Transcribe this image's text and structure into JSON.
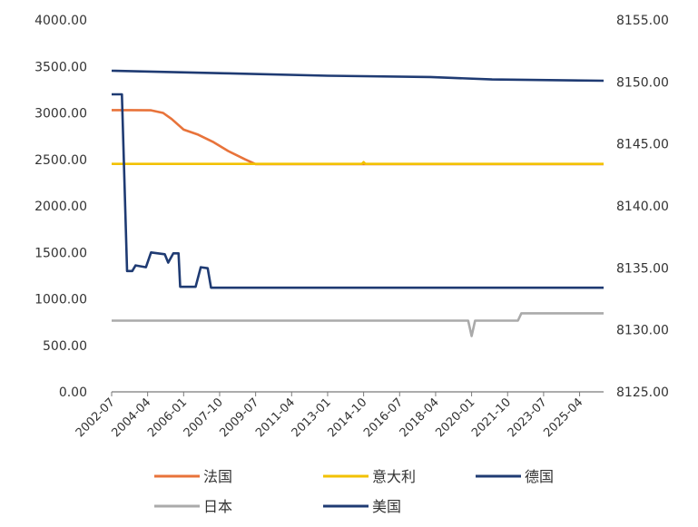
{
  "chart_data": {
    "type": "line",
    "title": "",
    "xlabel": "",
    "ylabel": "",
    "x_ticks": [
      "2002-07",
      "2004-04",
      "2006-01",
      "2007-10",
      "2009-07",
      "2011-04",
      "2013-01",
      "2014-10",
      "2016-07",
      "2018-04",
      "2020-01",
      "2021-10",
      "2023-07",
      "2025-04"
    ],
    "x_range": [
      "2002-07",
      "2026-06"
    ],
    "y_left": {
      "ticks": [
        "0.00",
        "500.00",
        "1000.00",
        "1500.00",
        "2000.00",
        "2500.00",
        "3000.00",
        "3500.00",
        "4000.00"
      ],
      "range": [
        0,
        4000
      ]
    },
    "y_right": {
      "ticks": [
        "8125.00",
        "8130.00",
        "8135.00",
        "8140.00",
        "8145.00",
        "8150.00",
        "8155.00"
      ],
      "range": [
        8125,
        8155
      ]
    },
    "grid": false,
    "legend_position": "bottom",
    "series": [
      {
        "name": "法国",
        "axis": "left",
        "color": "#E8733A",
        "points": [
          [
            "2002-07",
            3030
          ],
          [
            "2003-06",
            3030
          ],
          [
            "2004-06",
            3028
          ],
          [
            "2005-01",
            3000
          ],
          [
            "2005-06",
            2935
          ],
          [
            "2006-01",
            2820
          ],
          [
            "2006-09",
            2770
          ],
          [
            "2007-06",
            2690
          ],
          [
            "2008-03",
            2590
          ],
          [
            "2009-01",
            2500
          ],
          [
            "2009-07",
            2450
          ],
          [
            "2026-06",
            2450
          ]
        ]
      },
      {
        "name": "意大利",
        "axis": "left",
        "color": "#F2C100",
        "points": [
          [
            "2002-07",
            2452
          ],
          [
            "2014-09",
            2452
          ],
          [
            "2014-10",
            2470
          ],
          [
            "2014-11",
            2452
          ],
          [
            "2026-06",
            2452
          ]
        ]
      },
      {
        "name": "德国",
        "axis": "left",
        "color": "#1F3B73",
        "points": [
          [
            "2002-07",
            3200
          ],
          [
            "2003-01",
            3200
          ],
          [
            "2003-04",
            1300
          ],
          [
            "2003-07",
            1300
          ],
          [
            "2003-09",
            1360
          ],
          [
            "2004-03",
            1340
          ],
          [
            "2004-06",
            1500
          ],
          [
            "2005-02",
            1480
          ],
          [
            "2005-04",
            1390
          ],
          [
            "2005-07",
            1490
          ],
          [
            "2005-10",
            1490
          ],
          [
            "2005-11",
            1130
          ],
          [
            "2006-08",
            1130
          ],
          [
            "2006-11",
            1340
          ],
          [
            "2007-03",
            1330
          ],
          [
            "2007-05",
            1120
          ],
          [
            "2026-06",
            1120
          ]
        ]
      },
      {
        "name": "日本",
        "axis": "left",
        "color": "#AAAAAA",
        "points": [
          [
            "2002-07",
            766
          ],
          [
            "2019-11",
            766
          ],
          [
            "2020-01",
            600
          ],
          [
            "2020-03",
            766
          ],
          [
            "2022-04",
            766
          ],
          [
            "2022-06",
            845
          ],
          [
            "2026-06",
            845
          ]
        ]
      },
      {
        "name": "美国",
        "axis": "right",
        "color": "#1F3B73",
        "points": [
          [
            "2002-07",
            8150.9
          ],
          [
            "2008-01",
            8150.7
          ],
          [
            "2013-01",
            8150.5
          ],
          [
            "2018-01",
            8150.4
          ],
          [
            "2021-01",
            8150.2
          ],
          [
            "2026-06",
            8150.1
          ]
        ]
      }
    ]
  }
}
